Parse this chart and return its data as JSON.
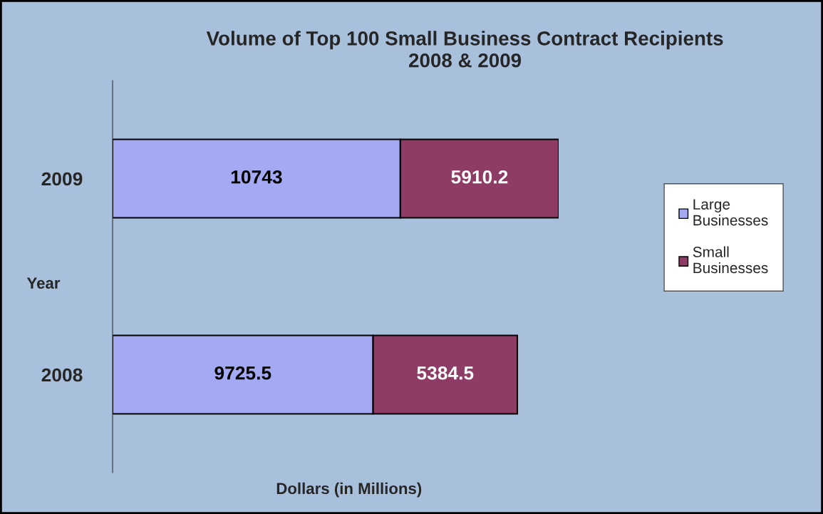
{
  "chart_data": {
    "type": "bar",
    "orientation": "horizontal",
    "stacked": true,
    "title": "Volume of Top 100 Small Business Contract Recipients\n2008 & 2009",
    "xlabel": "Dollars (in Millions)",
    "ylabel": "Year",
    "categories": [
      "2009",
      "2008"
    ],
    "series": [
      {
        "name": "Large Businesses",
        "color": "#a3a9f2",
        "values": [
          10743,
          9725.5
        ]
      },
      {
        "name": "Small Businesses",
        "color": "#8e3b66",
        "values": [
          5910.2,
          5384.5
        ]
      }
    ],
    "data_labels": true,
    "legend": "right",
    "grid": false,
    "tick_labels": "y"
  }
}
